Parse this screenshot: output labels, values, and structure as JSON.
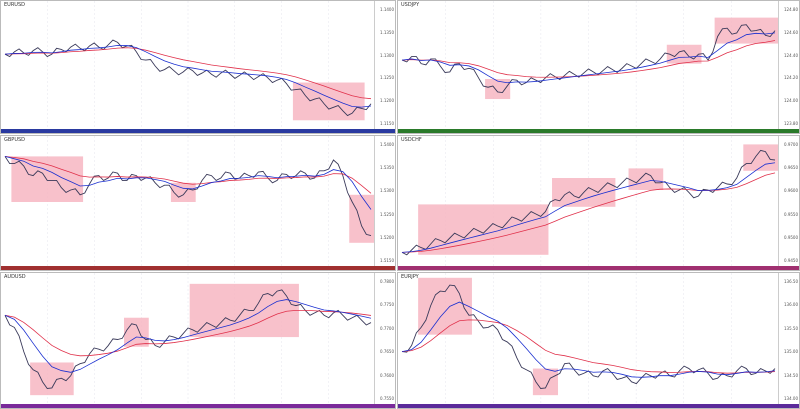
{
  "colors": {
    "box": "#f7b6c2",
    "price": "#3a3a5a",
    "fast_ma": "#1a2fd0",
    "slow_ma": "#e0304a",
    "grid": "#e4e4ee"
  },
  "chart_data": [
    {
      "type": "line",
      "title": "EURUSD",
      "ylim": [
        0,
        100
      ],
      "strip": "#2a3aa0",
      "ticks": [
        "1.1400",
        "1.1350",
        "1.1300",
        "1.1250",
        "1.1200",
        "1.1150"
      ],
      "values": [
        60,
        62,
        61,
        63,
        62,
        60,
        64,
        66,
        65,
        67,
        66,
        68,
        70,
        67,
        62,
        55,
        50,
        47,
        46,
        45,
        46,
        44,
        43,
        44,
        43,
        42,
        42,
        41,
        40,
        38,
        35,
        30,
        25,
        22,
        18,
        15,
        12,
        10,
        14,
        18
      ],
      "boxes": [
        [
          31,
          38
        ]
      ]
    },
    {
      "type": "line",
      "title": "USDJPY",
      "ylim": [
        0,
        100
      ],
      "strip": "#2a7a2a",
      "ticks": [
        "124.80",
        "124.60",
        "124.40",
        "124.20",
        "124.00",
        "123.80"
      ],
      "values": [
        55,
        58,
        52,
        56,
        50,
        45,
        52,
        48,
        40,
        32,
        28,
        33,
        38,
        36,
        38,
        40,
        41,
        42,
        43,
        44,
        45,
        46,
        47,
        48,
        50,
        52,
        54,
        56,
        60,
        62,
        58,
        60,
        55,
        75,
        82,
        78,
        85,
        80,
        76,
        80
      ],
      "boxes": [
        [
          9,
          11
        ],
        [
          28,
          31
        ],
        [
          33,
          39
        ]
      ]
    },
    {
      "type": "line",
      "title": "GBPUSD",
      "ylim": [
        0,
        100
      ],
      "strip": "#a03030",
      "ticks": [
        "1.5400",
        "1.5350",
        "1.5300",
        "1.5250",
        "1.5200",
        "1.5150"
      ],
      "values": [
        88,
        82,
        80,
        72,
        74,
        68,
        62,
        60,
        56,
        65,
        72,
        70,
        74,
        68,
        72,
        70,
        66,
        64,
        58,
        56,
        60,
        68,
        72,
        70,
        74,
        70,
        72,
        75,
        70,
        68,
        73,
        72,
        74,
        70,
        76,
        85,
        72,
        50,
        30,
        22
      ],
      "boxes": [
        [
          1,
          8
        ],
        [
          18,
          20
        ],
        [
          37,
          39
        ]
      ]
    },
    {
      "type": "line",
      "title": "USDCHF",
      "ylim": [
        0,
        100
      ],
      "strip": "#a03070",
      "ticks": [
        "0.9700",
        "0.9650",
        "0.9600",
        "0.9550",
        "0.9500",
        "0.9450"
      ],
      "values": [
        8,
        10,
        12,
        15,
        18,
        20,
        22,
        24,
        26,
        28,
        30,
        33,
        36,
        38,
        40,
        42,
        52,
        56,
        55,
        58,
        60,
        62,
        64,
        66,
        68,
        70,
        72,
        66,
        62,
        60,
        58,
        55,
        60,
        62,
        65,
        70,
        82,
        88,
        92,
        85
      ],
      "boxes": [
        [
          2,
          15
        ],
        [
          16,
          22
        ],
        [
          24,
          27
        ],
        [
          36,
          39
        ]
      ]
    },
    {
      "type": "line",
      "title": "AUDUSD",
      "ylim": [
        0,
        100
      ],
      "strip": "#7a2a9a",
      "ticks": [
        "0.7800",
        "0.7750",
        "0.7700",
        "0.7650",
        "0.7600",
        "0.7550"
      ],
      "values": [
        70,
        60,
        40,
        25,
        15,
        10,
        18,
        20,
        30,
        38,
        42,
        45,
        50,
        58,
        62,
        50,
        45,
        48,
        52,
        55,
        58,
        60,
        62,
        64,
        66,
        70,
        74,
        80,
        88,
        90,
        86,
        78,
        74,
        72,
        70,
        72,
        70,
        68,
        66,
        64
      ],
      "boxes": [
        [
          3,
          7
        ],
        [
          13,
          15
        ],
        [
          20,
          31
        ]
      ]
    },
    {
      "type": "line",
      "title": "EURJPY",
      "ylim": [
        0,
        100
      ],
      "strip": "#5a2a9a",
      "ticks": [
        "136.50",
        "136.00",
        "135.50",
        "135.00",
        "134.50",
        "134.00"
      ],
      "values": [
        40,
        45,
        60,
        78,
        90,
        95,
        88,
        70,
        65,
        60,
        58,
        48,
        35,
        25,
        15,
        10,
        20,
        30,
        25,
        22,
        20,
        24,
        22,
        18,
        15,
        18,
        20,
        22,
        20,
        24,
        26,
        25,
        22,
        18,
        20,
        24,
        26,
        22,
        24,
        26
      ],
      "boxes": [
        [
          2,
          7
        ],
        [
          14,
          16
        ]
      ]
    }
  ]
}
